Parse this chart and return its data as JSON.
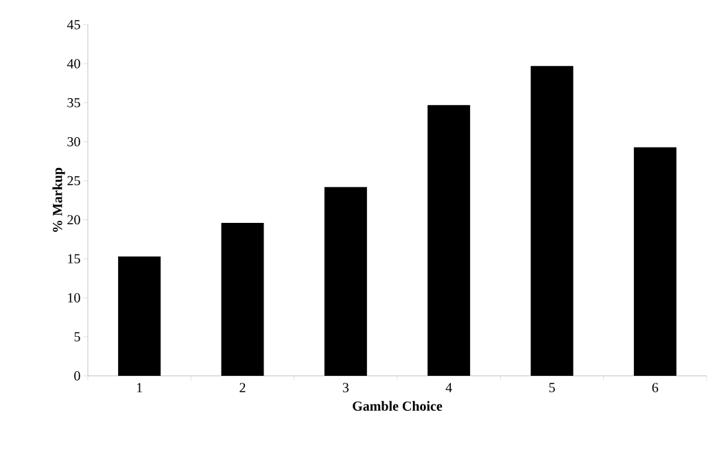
{
  "chart_data": {
    "type": "bar",
    "xlabel": "Gamble Choice",
    "ylabel": "% Markup",
    "categories": [
      "1",
      "2",
      "3",
      "4",
      "5",
      "6"
    ],
    "values": [
      15.3,
      19.6,
      24.2,
      34.7,
      39.7,
      29.3
    ],
    "color": "#000000",
    "ylim": [
      0,
      45
    ],
    "yticks": [
      0,
      5,
      10,
      15,
      20,
      25,
      30,
      35,
      40,
      45
    ]
  }
}
